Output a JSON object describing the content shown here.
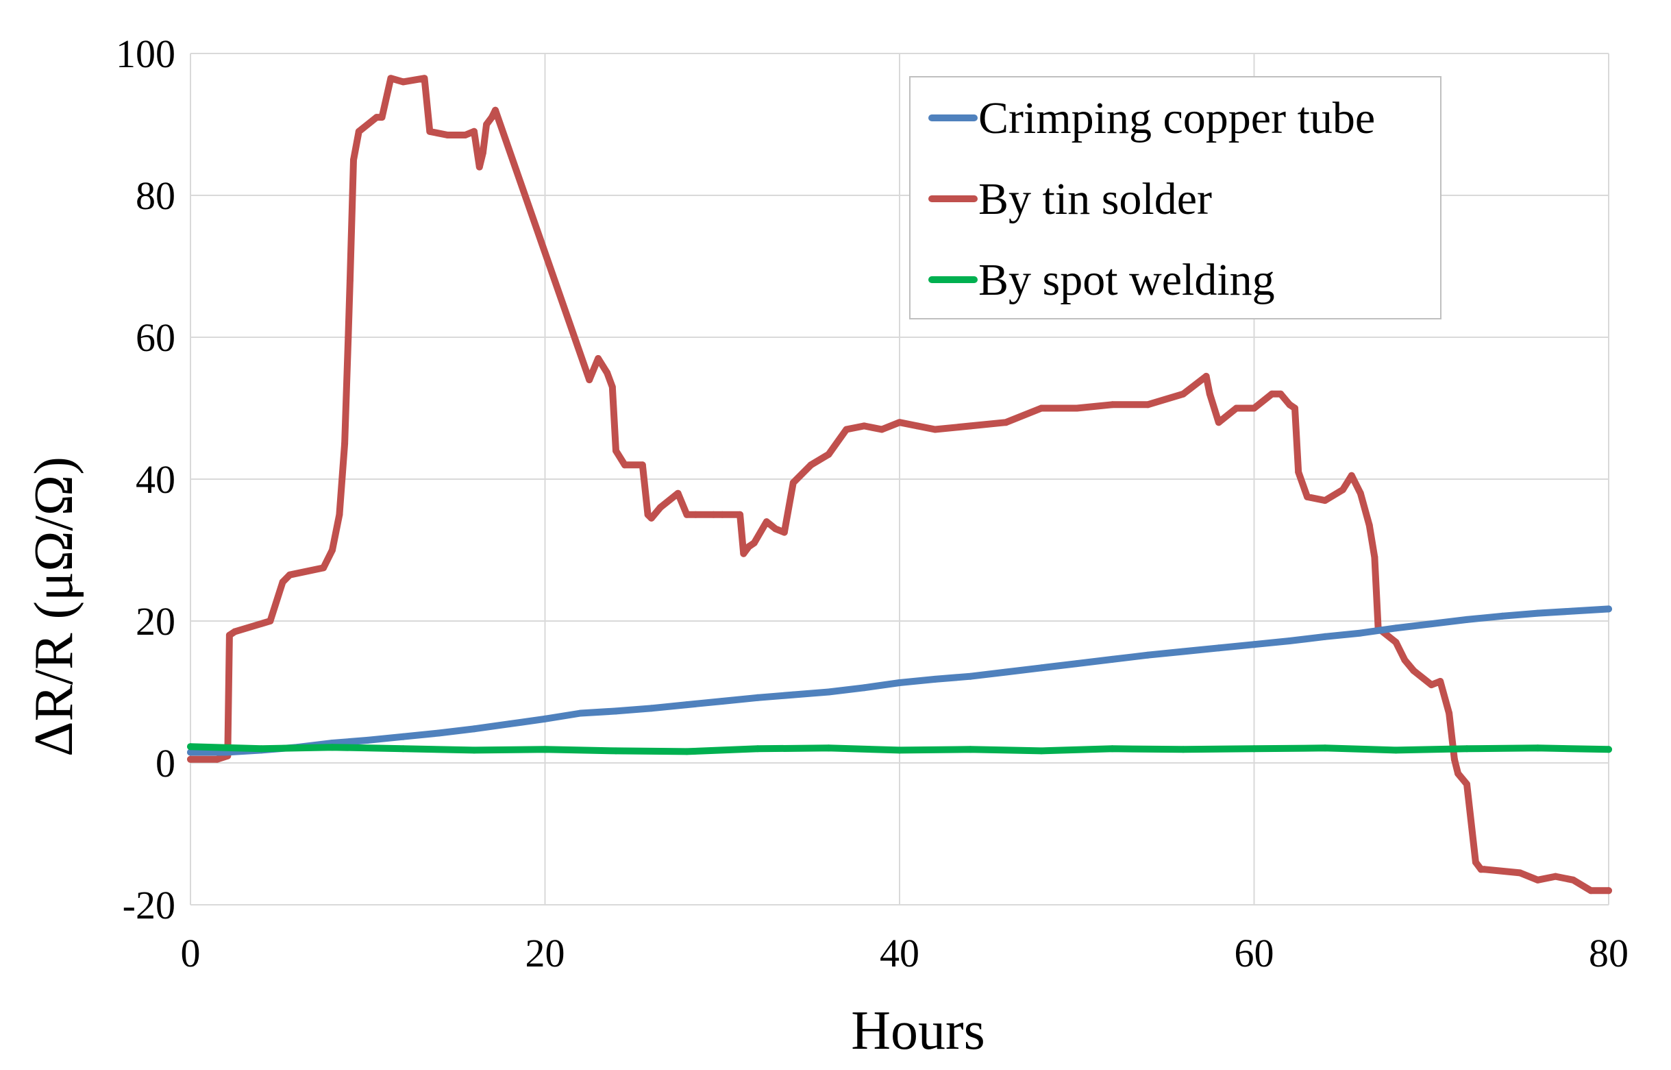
{
  "chart_data": {
    "type": "line",
    "title": "",
    "xlabel": "Hours",
    "ylabel": "ΔR/R (μΩ/Ω)",
    "xlim": [
      0,
      80
    ],
    "ylim": [
      -20,
      100
    ],
    "xticks": [
      0,
      20,
      40,
      60,
      80
    ],
    "yticks": [
      -20,
      0,
      20,
      40,
      60,
      80,
      100
    ],
    "xtick_labels": [
      "0",
      "20",
      "40",
      "60",
      "80"
    ],
    "ytick_labels": [
      "-20",
      "0",
      "20",
      "40",
      "60",
      "80",
      "100"
    ],
    "grid": true,
    "legend_position": "top-right",
    "series": [
      {
        "name": "Crimping copper tube",
        "color": "#4f81bd",
        "x": [
          0,
          2,
          4,
          6,
          8,
          10,
          12,
          14,
          16,
          18,
          20,
          22,
          24,
          26,
          28,
          30,
          32,
          34,
          36,
          38,
          40,
          42,
          44,
          46,
          48,
          50,
          52,
          54,
          56,
          58,
          60,
          62,
          64,
          66,
          68,
          70,
          72,
          74,
          76,
          78,
          80
        ],
        "y": [
          1.5,
          1.5,
          1.8,
          2.2,
          2.8,
          3.2,
          3.7,
          4.2,
          4.8,
          5.5,
          6.2,
          7.0,
          7.3,
          7.7,
          8.2,
          8.7,
          9.2,
          9.6,
          10.0,
          10.6,
          11.3,
          11.8,
          12.2,
          12.8,
          13.4,
          14.0,
          14.6,
          15.2,
          15.7,
          16.2,
          16.7,
          17.2,
          17.8,
          18.3,
          19.0,
          19.6,
          20.2,
          20.7,
          21.1,
          21.4,
          21.7
        ]
      },
      {
        "name": "By tin solder",
        "color": "#c0504d",
        "x": [
          0,
          1.5,
          2.1,
          2.2,
          2.5,
          4.5,
          5.2,
          5.6,
          7.5,
          8.0,
          8.4,
          8.7,
          8.9,
          9.0,
          9.2,
          9.5,
          10.5,
          10.8,
          11.3,
          12.0,
          13.2,
          13.5,
          14.5,
          15.5,
          16.0,
          16.3,
          16.5,
          16.7,
          17.0,
          17.2,
          22.5,
          23.0,
          23.5,
          23.8,
          24.0,
          24.5,
          25.5,
          25.8,
          26.0,
          26.5,
          27.5,
          28.0,
          28.5,
          29.5,
          30.0,
          31.0,
          31.2,
          31.5,
          31.8,
          32.5,
          33.0,
          33.5,
          34.0,
          35.0,
          36.0,
          37.0,
          38.0,
          39.0,
          40.0,
          41.0,
          42.0,
          44.0,
          46.0,
          48.0,
          50.0,
          52.0,
          54.0,
          56.0,
          57.3,
          57.5,
          58.0,
          59.0,
          60.0,
          61.0,
          61.5,
          62.0,
          62.3,
          62.5,
          63.0,
          64.0,
          65.0,
          65.5,
          66.0,
          66.5,
          66.8,
          67.0,
          68.0,
          68.5,
          69.0,
          70.0,
          70.5,
          71.0,
          71.3,
          71.5,
          72.0,
          72.5,
          72.8,
          73.0,
          75.0,
          76.0,
          77.0,
          78.0,
          79.0,
          80.0
        ],
        "y": [
          0.5,
          0.5,
          1.0,
          18.0,
          18.5,
          20.0,
          25.5,
          26.5,
          27.5,
          30.0,
          35.0,
          45.0,
          60.0,
          68.0,
          85.0,
          89.0,
          91.0,
          91.0,
          96.5,
          96.0,
          96.5,
          89.0,
          88.5,
          88.5,
          89.0,
          84.0,
          86.0,
          90.0,
          91.0,
          92.0,
          54.0,
          57.0,
          55.0,
          53.0,
          44.0,
          42.0,
          42.0,
          35.0,
          34.5,
          36.0,
          38.0,
          35.0,
          35.0,
          35.0,
          35.0,
          35.0,
          29.5,
          30.5,
          31.0,
          34.0,
          33.0,
          32.5,
          39.5,
          42.0,
          43.5,
          47.0,
          47.5,
          47.0,
          48.0,
          47.5,
          47.0,
          47.5,
          48.0,
          50.0,
          50.0,
          50.5,
          50.5,
          52.0,
          54.5,
          52.0,
          48.0,
          50.0,
          50.0,
          52.0,
          52.0,
          50.5,
          50.0,
          41.0,
          37.5,
          37.0,
          38.5,
          40.5,
          38.0,
          33.5,
          29.0,
          19.0,
          17.0,
          14.5,
          13.0,
          11.0,
          11.5,
          7.0,
          0.5,
          -1.5,
          -3.0,
          -14.0,
          -15.0,
          -15.0,
          -15.5,
          -16.5,
          -16.0,
          -16.5,
          -18.0,
          -18.0
        ]
      },
      {
        "name": "By spot welding",
        "color": "#00b050",
        "x": [
          0,
          4,
          8,
          12,
          16,
          20,
          24,
          28,
          32,
          36,
          40,
          44,
          48,
          52,
          56,
          60,
          64,
          68,
          72,
          76,
          80
        ],
        "y": [
          2.3,
          2.0,
          2.2,
          2.0,
          1.8,
          1.9,
          1.7,
          1.6,
          2.0,
          2.1,
          1.8,
          1.9,
          1.7,
          2.0,
          1.9,
          2.0,
          2.1,
          1.8,
          2.0,
          2.1,
          1.9
        ]
      }
    ]
  }
}
